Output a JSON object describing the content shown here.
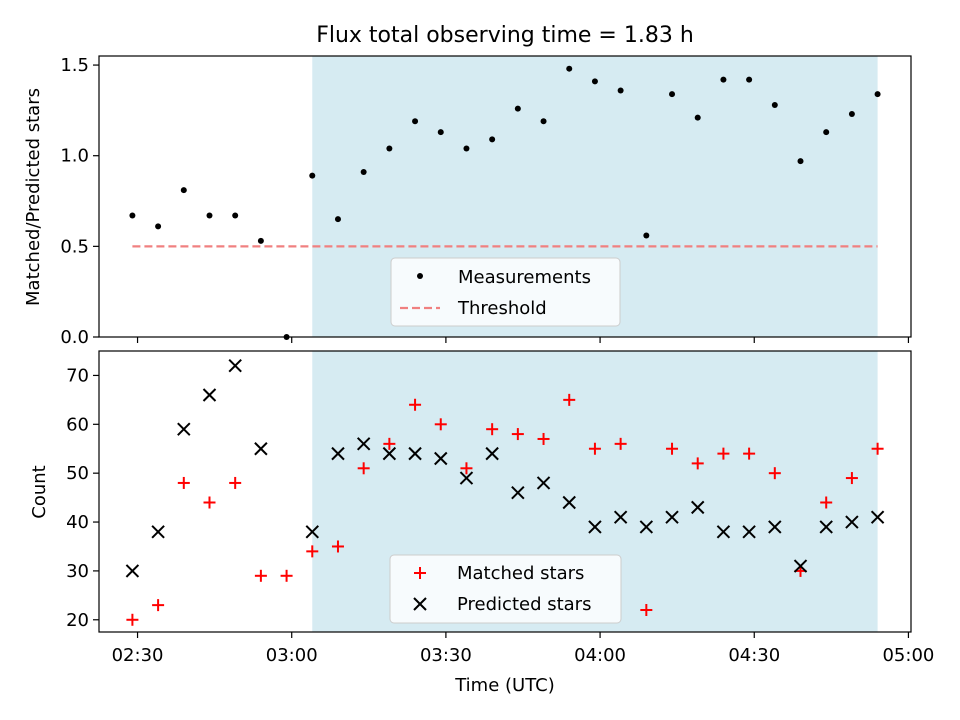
{
  "chart_data": [
    {
      "type": "scatter",
      "title": "Flux total observing time = 1.83 h",
      "ylabel": "Matched/Predicted stars",
      "xlim": [
        "02:22:30",
        "05:00:30"
      ],
      "ylim": [
        0,
        1.55
      ],
      "xticks": [
        "02:30",
        "03:00",
        "03:30",
        "04:00",
        "04:30",
        "05:00"
      ],
      "yticks": [
        "0.0",
        "0.5",
        "1.0",
        "1.5"
      ],
      "shaded_x_range": [
        "03:04",
        "04:54"
      ],
      "shade_color": "#add8e6",
      "x": [
        "02:29",
        "02:34",
        "02:39",
        "02:44",
        "02:49",
        "02:54",
        "02:59",
        "03:04",
        "03:09",
        "03:14",
        "03:19",
        "03:24",
        "03:29",
        "03:34",
        "03:39",
        "03:44",
        "03:49",
        "03:54",
        "03:59",
        "04:04",
        "04:09",
        "04:14",
        "04:19",
        "04:24",
        "04:29",
        "04:34",
        "04:39",
        "04:44",
        "04:49",
        "04:54"
      ],
      "series": [
        {
          "name": "Measurements",
          "marker": "point",
          "color": "#000000",
          "values": [
            0.67,
            0.61,
            0.81,
            0.67,
            0.67,
            0.53,
            0.0,
            0.89,
            0.65,
            0.91,
            1.04,
            1.19,
            1.13,
            1.04,
            1.09,
            1.26,
            1.19,
            1.48,
            1.41,
            1.36,
            0.56,
            1.34,
            1.21,
            1.42,
            1.42,
            1.28,
            0.97,
            1.13,
            1.23,
            1.34
          ]
        },
        {
          "name": "Threshold",
          "marker": "dashed-line",
          "color": "#f08080",
          "x": [
            "02:29",
            "04:54"
          ],
          "values": [
            0.5,
            0.5
          ]
        }
      ],
      "legend": {
        "position": "lower-center",
        "entries": [
          "Measurements",
          "Threshold"
        ]
      }
    },
    {
      "type": "scatter",
      "xlabel": "Time (UTC)",
      "ylabel": "Count",
      "xlim": [
        "02:22:30",
        "05:00:30"
      ],
      "ylim": [
        17.5,
        75
      ],
      "xticks": [
        "02:30",
        "03:00",
        "03:30",
        "04:00",
        "04:30",
        "05:00"
      ],
      "yticks": [
        "20",
        "30",
        "40",
        "50",
        "60",
        "70"
      ],
      "shaded_x_range": [
        "03:04",
        "04:54"
      ],
      "shade_color": "#add8e6",
      "x": [
        "02:29",
        "02:34",
        "02:39",
        "02:44",
        "02:49",
        "02:54",
        "02:59",
        "03:04",
        "03:09",
        "03:14",
        "03:19",
        "03:24",
        "03:29",
        "03:34",
        "03:39",
        "03:44",
        "03:49",
        "03:54",
        "03:59",
        "04:04",
        "04:09",
        "04:14",
        "04:19",
        "04:24",
        "04:29",
        "04:34",
        "04:39",
        "04:44",
        "04:49",
        "04:54"
      ],
      "series": [
        {
          "name": "Matched stars",
          "marker": "plus",
          "color": "#ff0000",
          "values": [
            20,
            23,
            48,
            44,
            48,
            29,
            29,
            34,
            35,
            51,
            56,
            64,
            60,
            51,
            59,
            58,
            57,
            65,
            55,
            56,
            22,
            55,
            52,
            54,
            54,
            50,
            30,
            44,
            49,
            55
          ]
        },
        {
          "name": "Predicted stars",
          "marker": "x",
          "color": "#000000",
          "values": [
            30,
            38,
            59,
            66,
            72,
            55,
            null,
            38,
            54,
            56,
            54,
            54,
            53,
            49,
            54,
            46,
            48,
            44,
            39,
            41,
            39,
            41,
            43,
            38,
            38,
            39,
            31,
            39,
            40,
            41
          ]
        }
      ],
      "legend": {
        "position": "lower-center",
        "entries": [
          "Matched stars",
          "Predicted stars"
        ]
      }
    }
  ]
}
